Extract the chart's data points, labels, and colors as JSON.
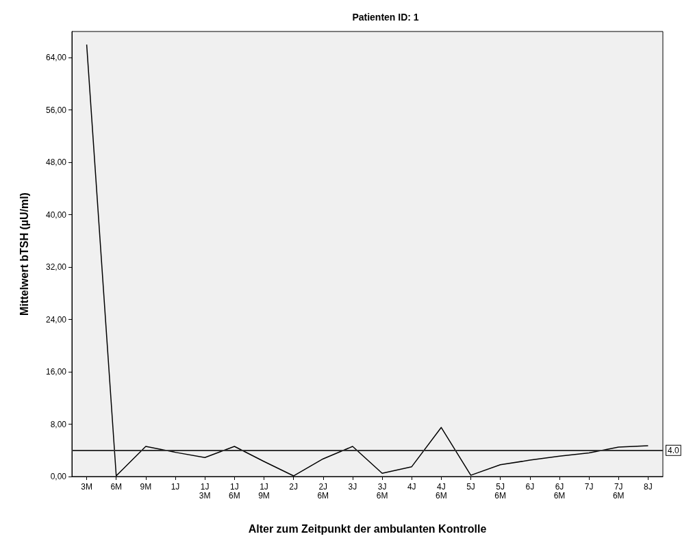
{
  "chart_data": {
    "type": "line",
    "title": "Patienten ID: 1",
    "xlabel": "Alter zum Zeitpunkt der ambulanten Kontrolle",
    "ylabel": "Mittelwert bTSH (µU/ml)",
    "categories": [
      "3M",
      "6M",
      "9M",
      "1J",
      "1J\n3M",
      "1J\n6M",
      "1J\n9M",
      "2J",
      "2J\n6M",
      "3J",
      "3J\n6M",
      "4J",
      "4J\n6M",
      "5J",
      "5J\n6M",
      "6J",
      "6J\n6M",
      "7J",
      "7J\n6M",
      "8J"
    ],
    "series": [
      {
        "color": "#000000",
        "values": [
          66,
          0.1,
          4.6,
          3.7,
          2.9,
          4.6,
          2.3,
          0.1,
          2.7,
          4.6,
          0.5,
          1.5,
          7.5,
          0.2,
          1.8,
          2.5,
          3.1,
          3.6,
          4.5,
          4.7
        ]
      }
    ],
    "ylim": [
      0,
      68
    ],
    "yticks": [
      {
        "value": 0,
        "label": "0,00"
      },
      {
        "value": 8,
        "label": "8,00"
      },
      {
        "value": 16,
        "label": "16,00"
      },
      {
        "value": 24,
        "label": "24,00"
      },
      {
        "value": 32,
        "label": "32,00"
      },
      {
        "value": 40,
        "label": "40,00"
      },
      {
        "value": 48,
        "label": "48,00"
      },
      {
        "value": 56,
        "label": "56,00"
      },
      {
        "value": 64,
        "label": "64,00"
      }
    ],
    "ref_lines": [
      {
        "axis": "y",
        "value": 4,
        "label": "4.0",
        "color": "#333333"
      }
    ],
    "grid": false,
    "marker": "none",
    "line_style": "solid"
  }
}
